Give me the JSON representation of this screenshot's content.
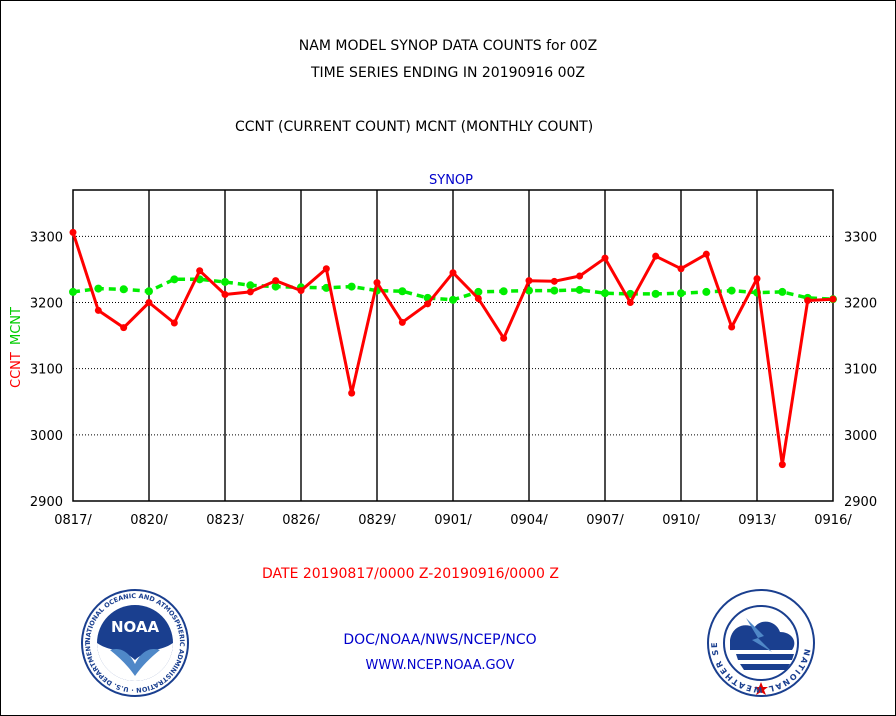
{
  "header": {
    "title_line1": "NAM MODEL SYNOP DATA COUNTS for 00Z",
    "title_line2": "TIME SERIES ENDING IN 20190916 00Z",
    "subtitle": "CCNT (CURRENT COUNT) MCNT (MONTHLY COUNT)"
  },
  "footer": {
    "date_range": "DATE 20190817/0000 Z-20190916/0000 Z",
    "org": "DOC/NOAA/NWS/NCEP/NCO",
    "url": "WWW.NCEP.NOAA.GOV"
  },
  "logos": {
    "left": "noaa-logo",
    "right": "nws-logo",
    "left_text": "NOAA",
    "left_ring_text": "NATIONAL OCEANIC AND ATMOSPHERIC ADMINISTRATION · U.S. DEPARTMENT OF COMMERCE ·",
    "right_ring_text": "NATIONAL WEATHER SERVICE"
  },
  "chart_data": {
    "type": "line",
    "title": "SYNOP",
    "ylabel_ccnt": "CCNT",
    "ylabel_mcnt": "MCNT",
    "ylim": [
      2900,
      3370
    ],
    "yticks": [
      2900,
      3000,
      3100,
      3200,
      3300
    ],
    "xtick_labels": [
      "0817/",
      "0820/",
      "0823/",
      "0826/",
      "0829/",
      "0901/",
      "0904/",
      "0907/",
      "0910/",
      "0913/",
      "0916/"
    ],
    "grid": true,
    "colors": {
      "ccnt": "#ff0000",
      "mcnt": "#00ee00",
      "title": "#0000cc"
    },
    "x": [
      "0817",
      "0818",
      "0819",
      "0820",
      "0821",
      "0822",
      "0823",
      "0824",
      "0825",
      "0826",
      "0827",
      "0828",
      "0829",
      "0830",
      "0831",
      "0901",
      "0902",
      "0903",
      "0904",
      "0905",
      "0906",
      "0907",
      "0908",
      "0909",
      "0910",
      "0911",
      "0912",
      "0913",
      "0914",
      "0915",
      "0916"
    ],
    "series": [
      {
        "name": "CCNT",
        "values": [
          3306,
          3188,
          3162,
          3200,
          3169,
          3248,
          3212,
          3216,
          3233,
          3218,
          3251,
          3063,
          3230,
          3170,
          3198,
          3245,
          3206,
          3146,
          3233,
          3232,
          3240,
          3267,
          3200,
          3270,
          3251,
          3273,
          3163,
          3236,
          2955,
          3203,
          3205
        ]
      },
      {
        "name": "MCNT",
        "values": [
          3216,
          3221,
          3220,
          3217,
          3235,
          3235,
          3231,
          3226,
          3224,
          3223,
          3222,
          3224,
          3218,
          3217,
          3207,
          3204,
          3216,
          3217,
          3218,
          3218,
          3219,
          3214,
          3213,
          3213,
          3214,
          3216,
          3218,
          3215,
          3216,
          3207,
          3205
        ]
      }
    ]
  }
}
